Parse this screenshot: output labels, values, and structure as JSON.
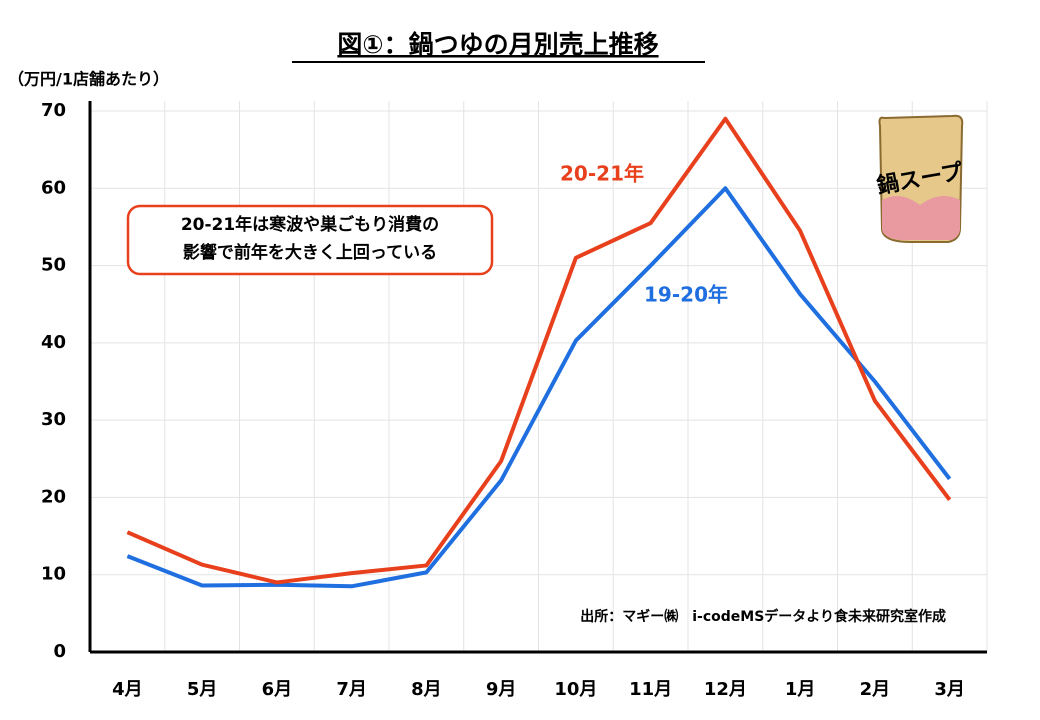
{
  "chart_data": {
    "type": "line",
    "title": "図①：鍋つゆの月別売上推移",
    "y_axis_label": "（万円/1店舗あたり）",
    "categories": [
      "4月",
      "5月",
      "6月",
      "7月",
      "8月",
      "9月",
      "10月",
      "11月",
      "12月",
      "1月",
      "2月",
      "3月"
    ],
    "series": [
      {
        "name": "20-21年",
        "color": "#e8401c",
        "values": [
          15.5,
          11.3,
          9,
          10.2,
          11.2,
          24.7,
          51,
          55.5,
          69,
          54.5,
          32.5,
          19.7
        ]
      },
      {
        "name": "19-20年",
        "color": "#1f6fe0",
        "values": [
          12.4,
          8.6,
          8.7,
          8.5,
          10.3,
          22.2,
          40.3,
          50,
          60,
          46.3,
          35,
          22.4
        ]
      }
    ],
    "ylim": [
      0,
      70
    ],
    "yticks": [
      0,
      10,
      20,
      30,
      40,
      50,
      60,
      70
    ],
    "grid": true,
    "annotation": [
      "20-21年は寒波や巣ごもり消費の",
      "影響で前年を大きく上回っている"
    ],
    "source": "出所：マギー㈱　i-codeMSデータより食未来研究室作成",
    "illustration_label": "鍋スープ"
  }
}
